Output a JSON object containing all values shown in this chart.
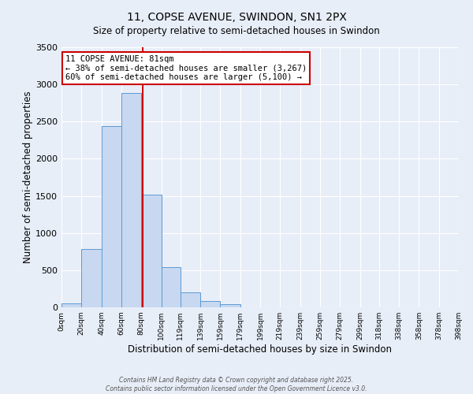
{
  "title_line1": "11, COPSE AVENUE, SWINDON, SN1 2PX",
  "title_line2": "Size of property relative to semi-detached houses in Swindon",
  "xlabel": "Distribution of semi-detached houses by size in Swindon",
  "ylabel": "Number of semi-detached properties",
  "bin_edges": [
    0,
    20,
    40,
    60,
    80,
    100,
    119,
    139,
    159,
    179,
    199,
    219,
    239,
    259,
    279,
    299,
    318,
    338,
    358,
    378,
    398
  ],
  "bar_heights": [
    50,
    780,
    2440,
    2890,
    1520,
    540,
    205,
    90,
    40,
    0,
    0,
    0,
    0,
    0,
    0,
    0,
    0,
    0,
    0,
    0
  ],
  "bar_color": "#c8d8f0",
  "bar_edge_color": "#5b9bd5",
  "property_value": 81,
  "vline_color": "#cc0000",
  "annotation_title": "11 COPSE AVENUE: 81sqm",
  "annotation_line2": "← 38% of semi-detached houses are smaller (3,267)",
  "annotation_line3": "60% of semi-detached houses are larger (5,100) →",
  "annotation_box_color": "#ffffff",
  "annotation_box_edge": "#cc0000",
  "ylim": [
    0,
    3500
  ],
  "yticks": [
    0,
    500,
    1000,
    1500,
    2000,
    2500,
    3000,
    3500
  ],
  "bg_color": "#e8eef8",
  "grid_color": "#ffffff",
  "footer_line1": "Contains HM Land Registry data © Crown copyright and database right 2025.",
  "footer_line2": "Contains public sector information licensed under the Open Government Licence v3.0."
}
